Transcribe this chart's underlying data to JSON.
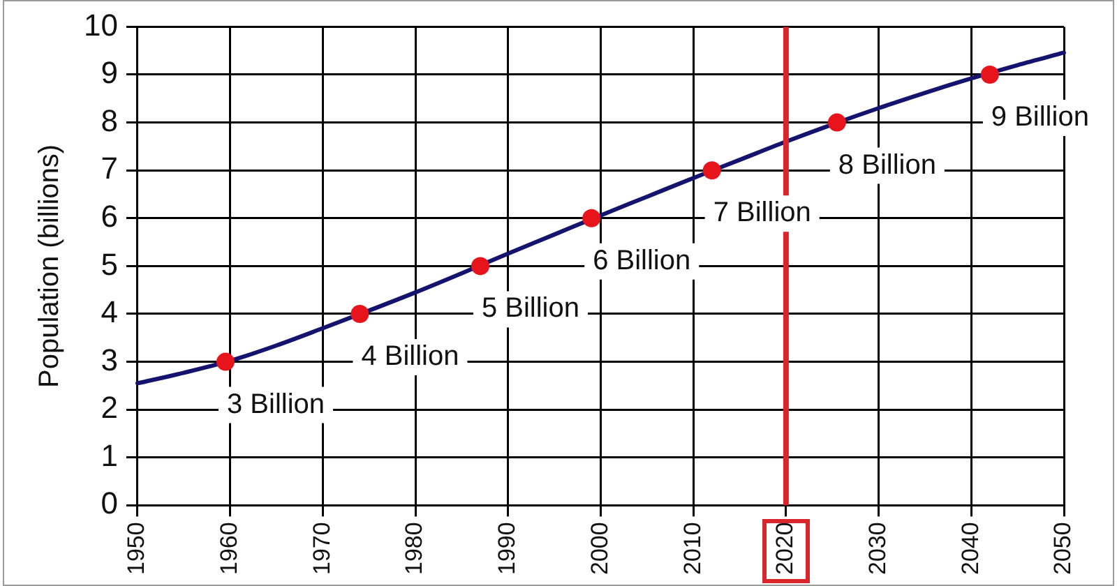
{
  "chart_data": {
    "type": "line",
    "ylabel": "Population (billions)",
    "series": [
      {
        "color": "#14146e",
        "x": [
          1950,
          1955,
          1960,
          1965,
          1970,
          1975,
          1980,
          1985,
          1990,
          1995,
          2000,
          2005,
          2010,
          2015,
          2020,
          2025,
          2030,
          2035,
          2040,
          2045,
          2050
        ],
        "values": [
          2.55,
          2.77,
          3.02,
          3.34,
          3.7,
          4.07,
          4.45,
          4.85,
          5.26,
          5.66,
          6.06,
          6.45,
          6.84,
          7.22,
          7.6,
          7.96,
          8.3,
          8.62,
          8.92,
          9.2,
          9.46
        ]
      },
      {
        "type": "scatter",
        "color": "#e8141c",
        "marker": "circle",
        "x": [
          1959.5,
          1974,
          1987,
          1999,
          2012,
          2025.5,
          2042
        ],
        "values": [
          3,
          4,
          5,
          6,
          7,
          8,
          9
        ],
        "value_labels": [
          "3 Billion",
          "4 Billion",
          "5 Billion",
          "6 Billion",
          "7 Billion",
          "8 Billion",
          "9 Billion"
        ]
      }
    ],
    "xlim": [
      1950,
      2050
    ],
    "xticks": [
      1950,
      1960,
      1970,
      1980,
      1990,
      2000,
      2010,
      2020,
      2030,
      2040,
      2050
    ],
    "ylim": [
      0,
      10
    ],
    "yticks": [
      0,
      1,
      2,
      3,
      4,
      5,
      6,
      7,
      8,
      9,
      10
    ],
    "grid": true,
    "ref_lines": [
      {
        "axis": "x",
        "value": 2020,
        "color": "#d9262c"
      }
    ]
  }
}
